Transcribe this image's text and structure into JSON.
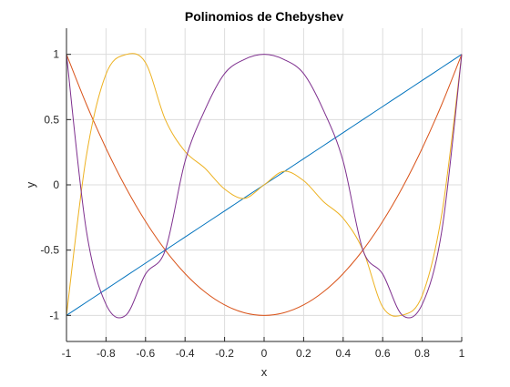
{
  "chart_data": {
    "type": "line",
    "title": "Polinomios de Chebyshev",
    "xlabel": "x",
    "ylabel": "y",
    "xlim": [
      -1,
      1
    ],
    "ylim": [
      -1.2,
      1.2
    ],
    "xticks": [
      -1,
      -0.8,
      -0.6,
      -0.4,
      -0.2,
      0,
      0.2,
      0.4,
      0.6,
      0.8,
      1
    ],
    "xtick_labels": [
      "-1",
      "-0.8",
      "-0.6",
      "-0.4",
      "-0.2",
      "0",
      "0.2",
      "0.4",
      "0.6",
      "0.8",
      "1"
    ],
    "yticks": [
      -1,
      -0.5,
      0,
      0.5,
      1
    ],
    "ytick_labels": [
      "-1",
      "-0.5",
      "0",
      "0.5",
      "1"
    ],
    "grid": true,
    "x": [
      -1,
      -0.9,
      -0.8,
      -0.7,
      -0.6,
      -0.5,
      -0.4,
      -0.3,
      -0.2,
      -0.1,
      0,
      0.1,
      0.2,
      0.3,
      0.4,
      0.5,
      0.6,
      0.7,
      0.8,
      0.9,
      1
    ],
    "series": [
      {
        "color": "#0072BD",
        "values": [
          -1,
          -0.9,
          -0.8,
          -0.7,
          -0.6,
          -0.5,
          -0.4,
          -0.3,
          -0.2,
          -0.1,
          0,
          0.1,
          0.2,
          0.3,
          0.4,
          0.5,
          0.6,
          0.7,
          0.8,
          0.9,
          1
        ]
      },
      {
        "color": "#D95319",
        "values": [
          1,
          0.62,
          0.28,
          -0.02,
          -0.28,
          -0.5,
          -0.68,
          -0.82,
          -0.92,
          -0.98,
          -1,
          -0.98,
          -0.92,
          -0.82,
          -0.68,
          -0.5,
          -0.28,
          -0.02,
          0.28,
          0.62,
          1
        ]
      },
      {
        "color": "#EDB120",
        "values": [
          -1,
          0.216,
          0.848,
          0.998,
          0.936,
          0.5,
          0.256,
          0.128,
          -0.032,
          -0.104,
          0,
          0.104,
          0.032,
          -0.128,
          -0.256,
          -0.5,
          -0.936,
          -0.998,
          -0.848,
          -0.216,
          1
        ]
      },
      {
        "color": "#7E2F8E",
        "values": [
          1,
          -0.3448,
          -0.9152,
          -0.9992,
          -0.6832,
          -0.5,
          0.1808,
          0.5728,
          0.8528,
          0.9608,
          1,
          0.9608,
          0.8528,
          0.5728,
          0.1808,
          -0.5,
          -0.6832,
          -0.9992,
          -0.9152,
          -0.3448,
          1
        ]
      }
    ]
  }
}
